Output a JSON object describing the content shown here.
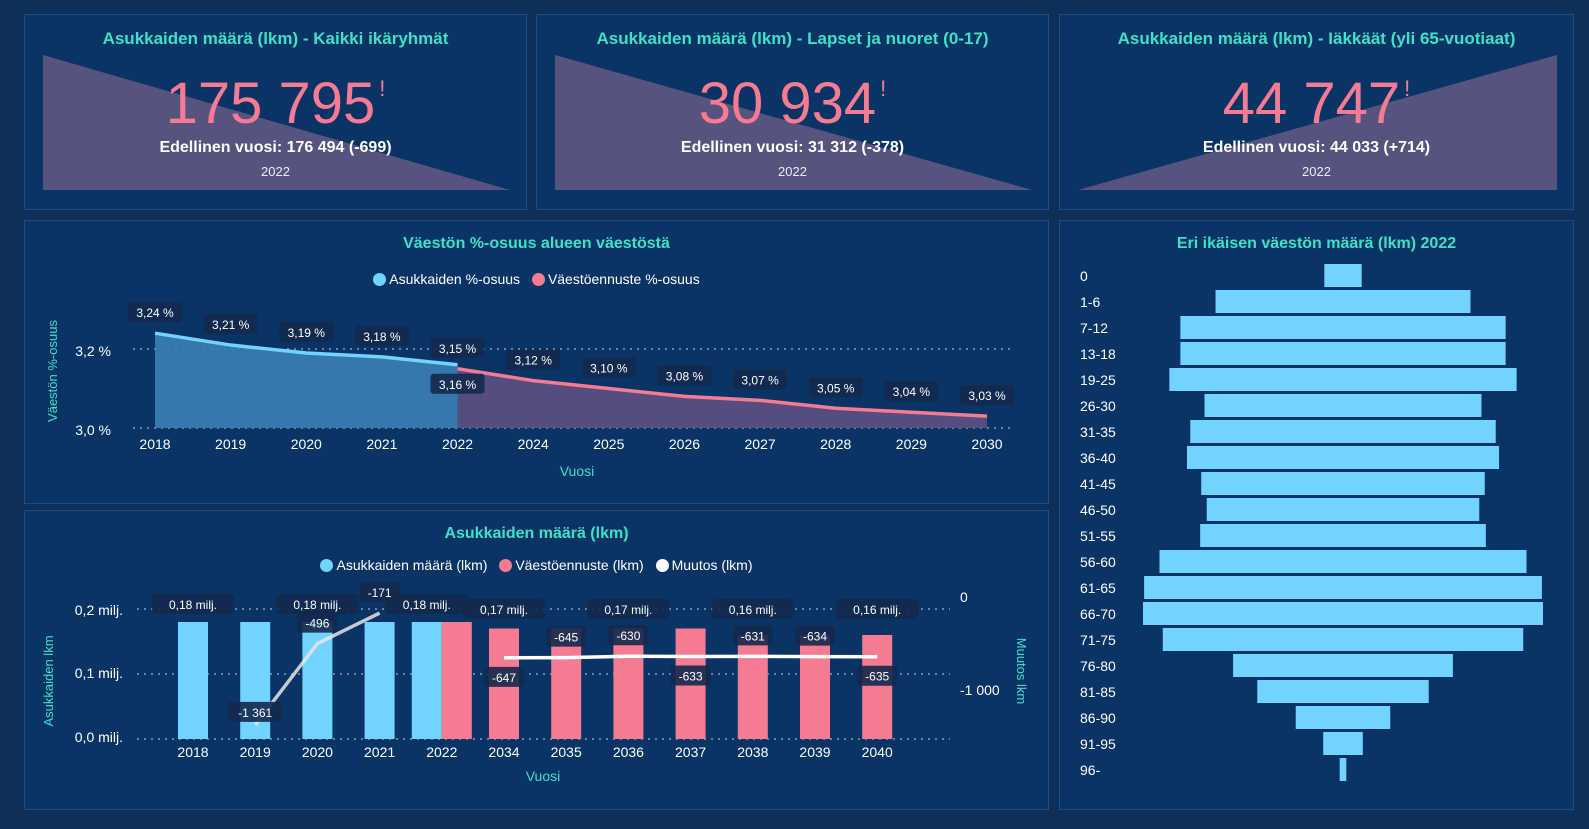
{
  "colors": {
    "bg": "#0a3466",
    "title": "#3ee0c6",
    "kpi_value": "#f47b91",
    "blue": "#72d3ff",
    "pink": "#f47b91",
    "white": "#ffffff",
    "label_bg": "#153057"
  },
  "kpis": [
    {
      "title": "Asukkaiden määrä (lkm) - Kaikki ikäryhmät",
      "value": "175 795",
      "flag": "!",
      "prev": "Edellinen vuosi: 176 494 (-699)",
      "year": "2022",
      "trend": "down"
    },
    {
      "title": "Asukkaiden määrä (lkm) - Lapset ja nuoret (0-17)",
      "value": "30 934",
      "flag": "!",
      "prev": "Edellinen vuosi: 31 312 (-378)",
      "year": "2022",
      "trend": "down"
    },
    {
      "title": "Asukkaiden määrä (lkm) - Iäkkäät (yli 65-vuotiaat)",
      "value": "44 747",
      "flag": "!",
      "prev": "Edellinen vuosi: 44 033 (+714)",
      "year": "2022",
      "trend": "up"
    }
  ],
  "share_chart": {
    "title": "Väestön %-osuus alueen väestöstä",
    "legend": [
      "Asukkaiden %-osuus",
      "Väestöennuste %-osuus"
    ],
    "ylabel": "Väestön %-osuus",
    "xlabel": "Vuosi",
    "yticks": [
      "3,2 %",
      "3,0 %"
    ]
  },
  "count_chart": {
    "title": "Asukkaiden määrä (lkm)",
    "legend": [
      "Asukkaiden määrä (lkm)",
      "Väestöennuste (lkm)",
      "Muutos (lkm)"
    ],
    "ylabel": "Asukkaiden lkm",
    "y2label": "Muutos lkm",
    "xlabel": "Vuosi",
    "yticks": [
      "0,2 milj.",
      "0,1 milj.",
      "0,0 milj."
    ],
    "y2ticks": [
      "0",
      "-1 000"
    ]
  },
  "age_chart": {
    "title": "Eri ikäisen väestön määrä (lkm) 2022"
  },
  "chart_data": [
    {
      "type": "area",
      "title": "Väestön %-osuus alueen väestöstä",
      "xlabel": "Vuosi",
      "ylabel": "Väestön %-osuus",
      "ylim": [
        3.0,
        3.25
      ],
      "x": [
        "2018",
        "2019",
        "2020",
        "2021",
        "2022",
        "2024",
        "2025",
        "2026",
        "2027",
        "2028",
        "2029",
        "2030"
      ],
      "series": [
        {
          "name": "Asukkaiden %-osuus",
          "x": [
            "2018",
            "2019",
            "2020",
            "2021",
            "2022"
          ],
          "values": [
            3.24,
            3.21,
            3.19,
            3.18,
            3.16
          ],
          "labels": [
            "3,24 %",
            "3,21 %",
            "3,19 %",
            "3,18 %",
            "3,16 %"
          ]
        },
        {
          "name": "Väestöennuste %-osuus",
          "x": [
            "2022",
            "2024",
            "2025",
            "2026",
            "2027",
            "2028",
            "2029",
            "2030"
          ],
          "values": [
            3.15,
            3.12,
            3.1,
            3.08,
            3.07,
            3.05,
            3.04,
            3.03
          ],
          "labels": [
            "3,15 %",
            "3,12 %",
            "3,10 %",
            "3,08 %",
            "3,07 %",
            "3,05 %",
            "3,04 %",
            "3,03 %"
          ]
        }
      ]
    },
    {
      "type": "bar",
      "title": "Asukkaiden määrä (lkm)",
      "xlabel": "Vuosi",
      "ylabel": "Asukkaiden lkm",
      "y2label": "Muutos lkm",
      "ylim": [
        0,
        0.2
      ],
      "y2lim": [
        -1500,
        0
      ],
      "categories": [
        "2018",
        "2019",
        "2020",
        "2021",
        "2022",
        "2034",
        "2035",
        "2036",
        "2037",
        "2038",
        "2039",
        "2040"
      ],
      "series": [
        {
          "name": "Asukkaiden määrä (lkm)",
          "values": [
            0.18,
            0.18,
            0.18,
            0.18,
            0.18,
            null,
            null,
            null,
            null,
            null,
            null,
            null
          ],
          "labels": [
            "0,18 milj.",
            "",
            "0,18 milj.",
            "",
            "0,18 milj.",
            "",
            "",
            "",
            "",
            "",
            "",
            ""
          ]
        },
        {
          "name": "Väestöennuste (lkm)",
          "values": [
            null,
            null,
            null,
            null,
            0.18,
            0.17,
            0.17,
            0.17,
            0.17,
            0.16,
            0.16,
            0.16
          ],
          "labels": [
            "",
            "",
            "",
            "",
            "",
            "0,17 milj.",
            "",
            "0,17 milj.",
            "",
            "0,16 milj.",
            "",
            "0,16 milj."
          ]
        },
        {
          "name": "Muutos (lkm)",
          "values": [
            null,
            -1361,
            -496,
            -171,
            null,
            -647,
            -645,
            -630,
            -633,
            -631,
            -634,
            -635
          ],
          "labels": [
            "",
            "-1 361",
            "-496",
            "-171",
            "",
            "-647",
            "-645",
            "-630",
            "-633",
            "-631",
            "-634",
            "-635"
          ]
        }
      ]
    },
    {
      "type": "bar",
      "title": "Eri ikäisen väestön määrä (lkm) 2022",
      "categories": [
        "0",
        "1-6",
        "7-12",
        "13-18",
        "19-25",
        "26-30",
        "31-35",
        "36-40",
        "41-45",
        "46-50",
        "51-55",
        "56-60",
        "61-65",
        "66-70",
        "71-75",
        "76-80",
        "81-85",
        "86-90",
        "91-95",
        "96-"
      ],
      "values": [
        1700,
        11600,
        14800,
        14800,
        15800,
        12600,
        13900,
        14200,
        12900,
        12400,
        13000,
        16700,
        18100,
        18200,
        16400,
        10000,
        7800,
        4300,
        1800,
        300
      ]
    }
  ]
}
